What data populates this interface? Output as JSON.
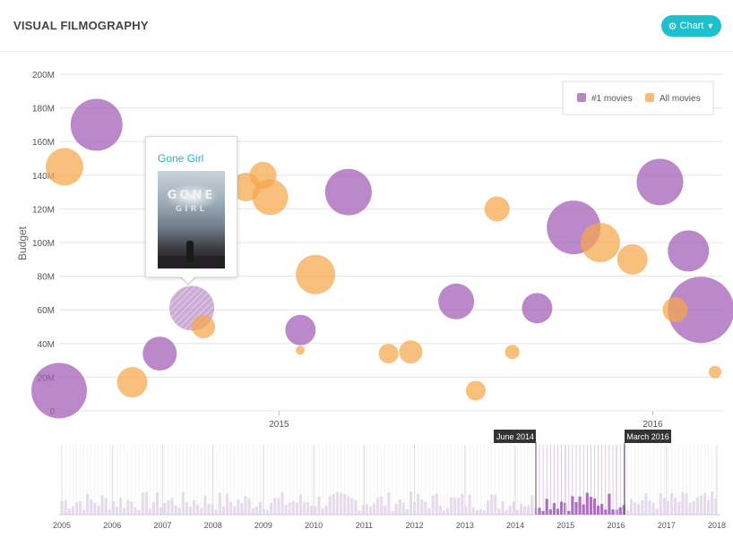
{
  "header": {
    "title": "VISUAL FILMOGRAPHY",
    "chart_button_label": "Chart",
    "chart_button_icon": "cogs-icon",
    "chevron_icon": "chevron-down-icon",
    "accent_color": "#1fc0ce"
  },
  "tooltip": {
    "title": "Gone Girl",
    "poster_text_line1": "GONE",
    "poster_text_line2": "GIRL"
  },
  "timeline": {
    "years": [
      "2005",
      "2006",
      "2007",
      "2008",
      "2009",
      "2010",
      "2011",
      "2012",
      "2013",
      "2014",
      "2015",
      "2016",
      "2017",
      "2018"
    ],
    "brush_start_label": "June 2014",
    "brush_end_label": "March 2016"
  },
  "colors": {
    "number_one": "#a15bb5",
    "all_movies": "#f7a64a",
    "tooltip_title": "#1fb8c9"
  },
  "chart_data": {
    "type": "scatter",
    "title": "",
    "xlabel": "",
    "ylabel": "Budget",
    "y_ticks": [
      "0",
      "20M",
      "40M",
      "60M",
      "80M",
      "100M",
      "120M",
      "140M",
      "160M",
      "180M",
      "200M"
    ],
    "ylim": [
      0,
      200
    ],
    "xlim": [
      "2014-06",
      "2016-03"
    ],
    "x_ticks": [
      "2015",
      "2016"
    ],
    "grid": true,
    "legend_position": "top-right",
    "series": [
      {
        "name": "#1 movies",
        "points": [
          {
            "x": "2014-06",
            "budget": 12,
            "size": 31
          },
          {
            "x": "2014-07",
            "budget": 170,
            "size": 29
          },
          {
            "x": "2014-09",
            "budget": 34,
            "size": 19
          },
          {
            "x": "2014-10",
            "budget": 61,
            "size": 25,
            "title": "Gone Girl",
            "highlighted": true
          },
          {
            "x": "2015-01",
            "budget": 48,
            "size": 17
          },
          {
            "x": "2015-03",
            "budget": 130,
            "size": 26
          },
          {
            "x": "2015-06",
            "budget": 65,
            "size": 20
          },
          {
            "x": "2015-09",
            "budget": 61,
            "size": 17
          },
          {
            "x": "2015-10",
            "budget": 109,
            "size": 30
          },
          {
            "x": "2016-01",
            "budget": 136,
            "size": 26
          },
          {
            "x": "2016-02",
            "budget": 95,
            "size": 23
          },
          {
            "x": "2016-02",
            "budget": 60,
            "size": 37
          }
        ]
      },
      {
        "name": "All movies",
        "points": [
          {
            "x": "2014-06",
            "budget": 145,
            "size": 21
          },
          {
            "x": "2014-08",
            "budget": 17,
            "size": 17
          },
          {
            "x": "2014-10",
            "budget": 50,
            "size": 13
          },
          {
            "x": "2014-12",
            "budget": 133,
            "size": 16
          },
          {
            "x": "2014-12",
            "budget": 140,
            "size": 15
          },
          {
            "x": "2014-12",
            "budget": 127,
            "size": 20
          },
          {
            "x": "2015-02",
            "budget": 81,
            "size": 22
          },
          {
            "x": "2015-02",
            "budget": 36,
            "size": 5
          },
          {
            "x": "2015-04",
            "budget": 34,
            "size": 11
          },
          {
            "x": "2015-05",
            "budget": 35,
            "size": 13
          },
          {
            "x": "2015-07",
            "budget": 12,
            "size": 11
          },
          {
            "x": "2015-08",
            "budget": 120,
            "size": 14
          },
          {
            "x": "2015-08",
            "budget": 35,
            "size": 8
          },
          {
            "x": "2015-11",
            "budget": 100,
            "size": 22
          },
          {
            "x": "2015-12",
            "budget": 90,
            "size": 17
          },
          {
            "x": "2016-01",
            "budget": 60,
            "size": 14
          },
          {
            "x": "2016-03",
            "budget": 23,
            "size": 7
          }
        ]
      }
    ]
  }
}
